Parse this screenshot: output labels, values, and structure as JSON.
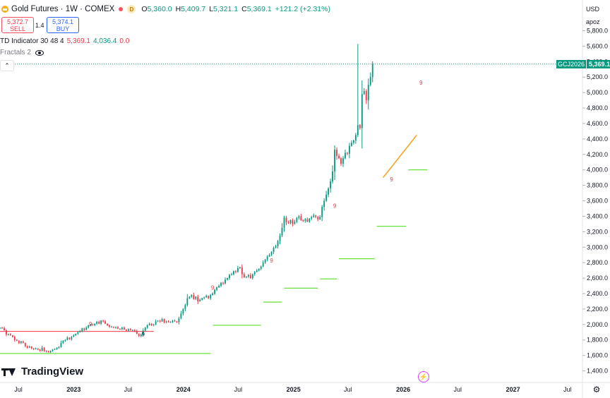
{
  "header": {
    "symbol_text": "Gold Futures · 1W · COMEX",
    "d_badge": "D",
    "ohlc": [
      {
        "k": "O",
        "v": "5,360.0"
      },
      {
        "k": "H",
        "v": "5,409.7"
      },
      {
        "k": "L",
        "v": "5,321.1"
      },
      {
        "k": "C",
        "v": "5,369.1"
      },
      {
        "k": "",
        "v": "+121.2 (+2.31%)"
      }
    ]
  },
  "trade": {
    "sell_price": "5,372.7",
    "sell_label": "SELL",
    "spread": "1.4",
    "buy_price": "5,374.1",
    "buy_label": "BUY"
  },
  "indicators": {
    "td_name": "TD Indicator 30 48 4",
    "td_v1": "5,369.1",
    "td_v2": "4,036.4",
    "td_v3": "0.0",
    "fractals": "Fractals 2"
  },
  "scale": {
    "currency": "USD",
    "mode": "apoz"
  },
  "price_tag": {
    "symbol": "GCJ2026",
    "price": "5,369.1"
  },
  "logo_text": "TradingView",
  "colors": {
    "up": "#089981",
    "down": "#f23645",
    "support": "#55dd22",
    "resistance": "#f23645",
    "trend": "#f5a623",
    "last": "#089981"
  },
  "chart_data": {
    "type": "candlestick",
    "title": "Gold Futures · 1W · COMEX",
    "y_ticks": [
      1400,
      1600,
      1800,
      2000,
      2200,
      2400,
      2600,
      2800,
      3000,
      3200,
      3400,
      3600,
      3800,
      4000,
      4200,
      4400,
      4600,
      4800,
      5000,
      5200,
      5400,
      5600,
      5800
    ],
    "y_tick_labels": [
      "1,400.0",
      "1,600.0",
      "1,800.0",
      "2,000.0",
      "2,200.0",
      "2,400.0",
      "2,600.0",
      "2,800.0",
      "3,000.0",
      "3,200.0",
      "3,400.0",
      "3,600.0",
      "3,800.0",
      "4,000.0",
      "4,200.0",
      "4,400.0",
      "4,600.0",
      "4,800.0",
      "5,000.0",
      "5,200.0",
      "5,400.0",
      "5,600.0",
      "5,800.0"
    ],
    "ylim": [
      1250,
      5850
    ],
    "x_start": "2022-05-01",
    "x_end": "2027-08-20",
    "x_ticks": [
      {
        "date": "2022-07-01",
        "label": "Jul"
      },
      {
        "date": "2023-01-01",
        "label": "2023"
      },
      {
        "date": "2023-07-01",
        "label": "Jul"
      },
      {
        "date": "2024-01-01",
        "label": "2024"
      },
      {
        "date": "2024-07-01",
        "label": "Jul"
      },
      {
        "date": "2025-01-01",
        "label": "2025"
      },
      {
        "date": "2025-07-01",
        "label": "Jul"
      },
      {
        "date": "2026-01-01",
        "label": "2026"
      },
      {
        "date": "2026-07-01",
        "label": "Jul"
      },
      {
        "date": "2027-01-01",
        "label": "2027"
      },
      {
        "date": "2027-07-01",
        "label": "Jul"
      }
    ],
    "first_week": "2022-05-01",
    "closes": [
      1960,
      1955,
      1925,
      1870,
      1875,
      1860,
      1840,
      1800,
      1790,
      1760,
      1780,
      1760,
      1720,
      1700,
      1715,
      1690,
      1680,
      1690,
      1675,
      1660,
      1700,
      1660,
      1650,
      1640,
      1660,
      1675,
      1680,
      1700,
      1710,
      1760,
      1790,
      1800,
      1830,
      1810,
      1840,
      1860,
      1880,
      1900,
      1915,
      1950,
      1930,
      1960,
      1990,
      2000,
      1990,
      2010,
      2035,
      2010,
      2050,
      2040,
      2010,
      1990,
      1970,
      1970,
      1960,
      1965,
      1945,
      1940,
      1960,
      1935,
      1920,
      1940,
      1925,
      1930,
      1915,
      1880,
      1850,
      1870,
      1920,
      1960,
      1990,
      2010,
      1990,
      2000,
      2040,
      2050,
      2040,
      2070,
      2030,
      2040,
      2030,
      2035,
      2050,
      2040,
      2030,
      2080,
      2140,
      2200,
      2250,
      2340,
      2360,
      2380,
      2330,
      2360,
      2300,
      2320,
      2340,
      2350,
      2370,
      2340,
      2380,
      2400,
      2450,
      2480,
      2500,
      2540,
      2530,
      2580,
      2600,
      2640,
      2650,
      2690,
      2680,
      2730,
      2740,
      2650,
      2610,
      2620,
      2640,
      2600,
      2650,
      2680,
      2700,
      2720,
      2750,
      2800,
      2840,
      2880,
      2900,
      2940,
      2990,
      3010,
      3080,
      3150,
      3250,
      3380,
      3320,
      3310,
      3350,
      3300,
      3330,
      3380,
      3400,
      3350,
      3340,
      3360,
      3330,
      3370,
      3390,
      3410,
      3390,
      3360,
      3390,
      3520,
      3600,
      3680,
      3760,
      3850,
      3980,
      4260,
      4180,
      4150,
      4080,
      4150,
      4220,
      4210,
      4310,
      4350,
      4380,
      4450,
      4580,
      4540,
      4980,
      5020,
      4900,
      5100,
      5200,
      5369.1
    ],
    "support_lines": [
      {
        "from": "2022-05-01",
        "to": "2024-04-01",
        "value": 1625
      },
      {
        "from": "2024-04-08",
        "to": "2024-09-15",
        "value": 1990
      },
      {
        "from": "2024-09-22",
        "to": "2024-11-24",
        "value": 2290
      },
      {
        "from": "2024-12-01",
        "to": "2025-03-23",
        "value": 2470
      },
      {
        "from": "2025-03-30",
        "to": "2025-05-25",
        "value": 2590
      },
      {
        "from": "2025-06-01",
        "to": "2025-09-28",
        "value": 2850
      },
      {
        "from": "2025-10-05",
        "to": "2026-01-11",
        "value": 3270
      },
      {
        "from": "2026-01-18",
        "to": "2026-03-22",
        "value": 4000
      }
    ],
    "resistance_line": {
      "from": "2022-05-01",
      "to": "2023-09-24",
      "value": 1910
    },
    "trend_line": {
      "from": "2025-10-26",
      "to": "2026-02-15",
      "v1": 3900,
      "v2": 4450
    },
    "spike_high": 5626,
    "setup_marks": [
      {
        "date": "2023-02-26",
        "value": 1980,
        "label": "9",
        "color": "#f23645"
      },
      {
        "date": "2023-08-20",
        "value": 1850,
        "label": "9",
        "color": "#131722"
      },
      {
        "date": "2024-04-07",
        "value": 2450,
        "label": "9",
        "color": "#f23645"
      },
      {
        "date": "2024-10-20",
        "value": 2800,
        "label": "9",
        "color": "#f23645"
      },
      {
        "date": "2025-05-18",
        "value": 3510,
        "label": "9",
        "color": "#f23645"
      },
      {
        "date": "2025-11-23",
        "value": 3850,
        "label": "9",
        "color": "#f23645"
      },
      {
        "date": "2026-03-01",
        "value": 5100,
        "label": "9",
        "color": "#f23645"
      }
    ],
    "last_price": 5369.1
  }
}
